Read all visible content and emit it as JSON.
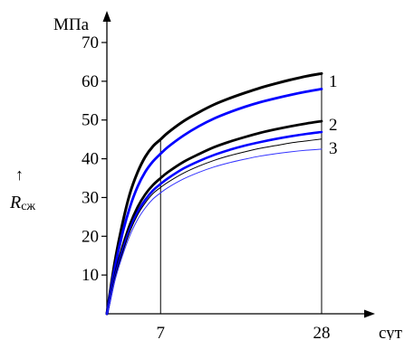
{
  "chart_data": {
    "type": "line",
    "ylabel_unit": "МПа",
    "xlabel_unit": "сут",
    "ylabel": "Rсж",
    "ylabel_symbol": "R",
    "ylabel_subscript": "сж",
    "ylabel_arrow": "↑",
    "ylim": [
      0,
      70
    ],
    "xlim": [
      0,
      28
    ],
    "yticks": [
      "10",
      "20",
      "30",
      "40",
      "50",
      "60",
      "70"
    ],
    "xticks": [
      "7",
      "28"
    ],
    "curve_labels": [
      "1",
      "2",
      "3"
    ],
    "colors": {
      "black": "#000000",
      "blue": "#0000ff",
      "blue_light": "#3333ff"
    },
    "series": [
      {
        "label": "1",
        "color": "#000000",
        "stroke": 3.0,
        "x": [
          0,
          1,
          2,
          3,
          4,
          5,
          6,
          7,
          8,
          10,
          12,
          14,
          16,
          18,
          20,
          22,
          24,
          26,
          28
        ],
        "y": [
          0,
          13,
          23,
          31,
          36.5,
          40.5,
          43.2,
          45,
          46.8,
          49.7,
          52,
          54,
          55.6,
          57,
          58.3,
          59.4,
          60.4,
          61.3,
          62
        ]
      },
      {
        "label": "1",
        "color": "#0000ff",
        "stroke": 2.8,
        "x": [
          0,
          1,
          2,
          3,
          4,
          5,
          6,
          7,
          8,
          10,
          12,
          14,
          16,
          18,
          20,
          22,
          24,
          26,
          28
        ],
        "y": [
          0,
          11.5,
          20.5,
          27.5,
          32.8,
          36.6,
          39.3,
          41.3,
          43.1,
          46,
          48.4,
          50.4,
          52,
          53.4,
          54.6,
          55.6,
          56.5,
          57.3,
          58
        ]
      },
      {
        "label": "2",
        "color": "#000000",
        "stroke": 2.8,
        "x": [
          0,
          1,
          2,
          3,
          4,
          5,
          6,
          7,
          8,
          10,
          12,
          14,
          16,
          18,
          20,
          22,
          24,
          26,
          28
        ],
        "y": [
          0,
          9.5,
          17,
          23,
          27.5,
          30.8,
          33.2,
          35,
          36.6,
          39.2,
          41.2,
          43,
          44.4,
          45.6,
          46.7,
          47.6,
          48.4,
          49.1,
          49.7
        ]
      },
      {
        "label": "2",
        "color": "#0000ff",
        "stroke": 2.6,
        "x": [
          0,
          1,
          2,
          3,
          4,
          5,
          6,
          7,
          8,
          10,
          12,
          14,
          16,
          18,
          20,
          22,
          24,
          26,
          28
        ],
        "y": [
          0,
          9,
          16,
          21.8,
          26.2,
          29.4,
          31.8,
          33.5,
          35,
          37.5,
          39.4,
          41,
          42.3,
          43.4,
          44.3,
          45.1,
          45.8,
          46.4,
          46.9
        ]
      },
      {
        "label": "3",
        "color": "#000000",
        "stroke": 1.0,
        "x": [
          0,
          1,
          2,
          3,
          4,
          5,
          6,
          7,
          8,
          10,
          12,
          14,
          16,
          18,
          20,
          22,
          24,
          26,
          28
        ],
        "y": [
          0,
          8.8,
          15.6,
          21.2,
          25.5,
          28.6,
          31,
          32.6,
          34,
          36.3,
          38.1,
          39.6,
          40.8,
          41.8,
          42.7,
          43.4,
          44.1,
          44.6,
          45.1
        ]
      },
      {
        "label": "3",
        "color": "#3333ff",
        "stroke": 1.0,
        "x": [
          0,
          1,
          2,
          3,
          4,
          5,
          6,
          7,
          8,
          10,
          12,
          14,
          16,
          18,
          20,
          22,
          24,
          26,
          28
        ],
        "y": [
          0,
          8.3,
          14.8,
          20.2,
          24.3,
          27.3,
          29.6,
          31.2,
          32.6,
          34.8,
          36.5,
          37.9,
          39,
          39.9,
          40.7,
          41.3,
          41.8,
          42.2,
          42.5
        ]
      }
    ],
    "vertical_lines_at_x": [
      7,
      28
    ],
    "grid": false,
    "legend": "none (inline curve labels at right end)"
  }
}
